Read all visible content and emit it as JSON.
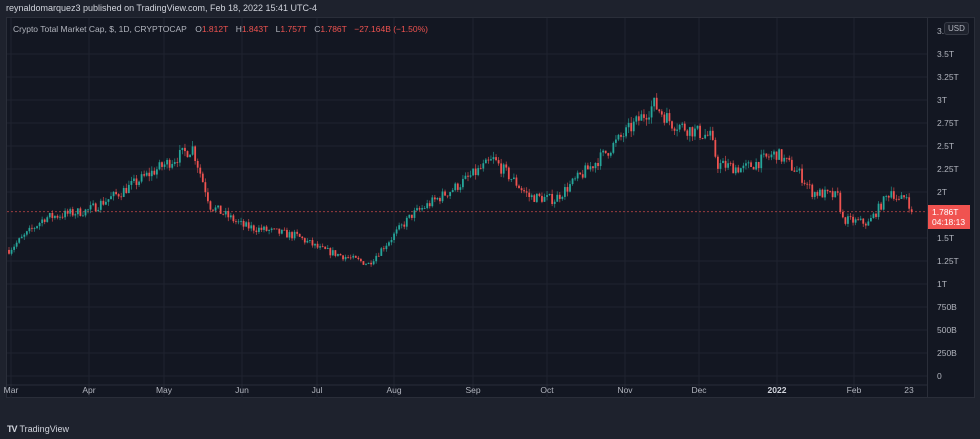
{
  "header": {
    "published_text": "reynaldomarquez3 published on TradingView.com, Feb 18, 2022 15:41 UTC-4"
  },
  "legend": {
    "symbol": "Crypto Total Market Cap, $, 1D, CRYPTOCAP",
    "open_key": "O",
    "open": "1.812T",
    "high_key": "H",
    "high": "1.843T",
    "low_key": "L",
    "low": "1.757T",
    "close_key": "C",
    "close": "1.786T",
    "change": "−27.164B (−1.50%)"
  },
  "price_axis": {
    "currency_button": "USD",
    "top_label": "3.",
    "current_price": "1.786T",
    "countdown": "04:18:13"
  },
  "footer": {
    "brand": "TradingView"
  },
  "colors": {
    "up": "#26a69a",
    "down": "#ef5350",
    "background": "#131722",
    "grid": "#1f2330",
    "price_label": "#f05350"
  },
  "chart_data": {
    "type": "candlestick",
    "title": "Crypto Total Market Cap, $, 1D, CRYPTOCAP",
    "xlabel": "",
    "ylabel": "USD",
    "ylim": [
      0,
      3.6
    ],
    "y_unit": "trillion USD",
    "yticks": [
      "0",
      "250B",
      "500B",
      "750B",
      "1T",
      "1.25T",
      "1.5T",
      "2T",
      "2.25T",
      "2.5T",
      "2.75T",
      "3T",
      "3.25T",
      "3.5T"
    ],
    "yticks_values": [
      0,
      0.25,
      0.5,
      0.75,
      1.0,
      1.25,
      1.5,
      2.0,
      2.25,
      2.5,
      2.75,
      3.0,
      3.25,
      3.5
    ],
    "xticks": [
      "Mar",
      "Apr",
      "May",
      "Jun",
      "Jul",
      "Aug",
      "Sep",
      "Oct",
      "Nov",
      "Dec",
      "2022",
      "Feb",
      "23"
    ],
    "grid": true,
    "legend_position": "top-left",
    "last_bar": {
      "open": 1.812,
      "high": 1.843,
      "low": 1.757,
      "close": 1.786,
      "change": -0.027164,
      "change_pct": -1.5
    },
    "approx_close_path": {
      "dates": [
        "Mar 1",
        "Mar 15",
        "Apr 1",
        "Apr 14",
        "Apr 24",
        "May 12",
        "May 19",
        "Jun 1",
        "Jun 22",
        "Jul 1",
        "Jul 20",
        "Aug 6",
        "Aug 23",
        "Sep 7",
        "Sep 21",
        "Oct 1",
        "Oct 20",
        "Nov 9",
        "Nov 16",
        "Dec 1",
        "Dec 4",
        "Dec 14",
        "Dec 27",
        "Jan 5",
        "Jan 10",
        "Jan 20",
        "Jan 22",
        "Feb 1",
        "Feb 10",
        "Feb 13",
        "Feb 16",
        "Feb 18"
      ],
      "close_T": [
        1.37,
        1.72,
        1.8,
        2.0,
        2.18,
        2.48,
        1.85,
        1.63,
        1.52,
        1.38,
        1.22,
        1.75,
        2.05,
        2.35,
        1.95,
        1.92,
        2.4,
        2.95,
        2.75,
        2.6,
        2.3,
        2.25,
        2.42,
        2.2,
        2.0,
        1.95,
        1.7,
        1.66,
        2.02,
        1.9,
        1.96,
        1.786
      ]
    }
  }
}
